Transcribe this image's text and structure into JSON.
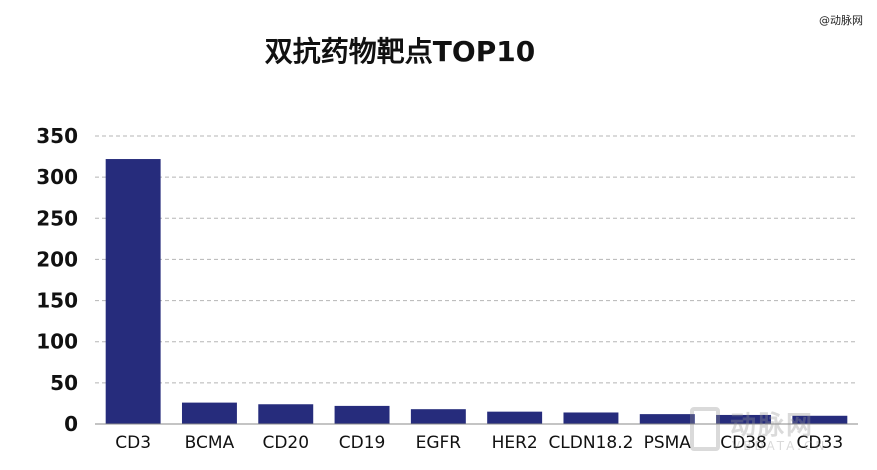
{
  "chart_data": {
    "type": "bar",
    "title": "双抗药物靶点TOP10",
    "categories": [
      "CD3",
      "BCMA",
      "CD20",
      "CD19",
      "EGFR",
      "HER2",
      "CLDN18.2",
      "PSMA",
      "CD38",
      "CD33"
    ],
    "values": [
      322,
      26,
      24,
      22,
      18,
      15,
      14,
      12,
      11,
      10
    ],
    "ylim": [
      0,
      350
    ],
    "yticks": [
      "0",
      "50",
      "100",
      "150",
      "200",
      "250",
      "300",
      "350"
    ],
    "xlabel": "",
    "ylabel": "",
    "grid": "horizontal dashed",
    "bar_color": "#262c7c"
  },
  "source_mark": "@动脉网",
  "watermark": {
    "main": "动脉网",
    "sub": "VBDATA.CN"
  }
}
